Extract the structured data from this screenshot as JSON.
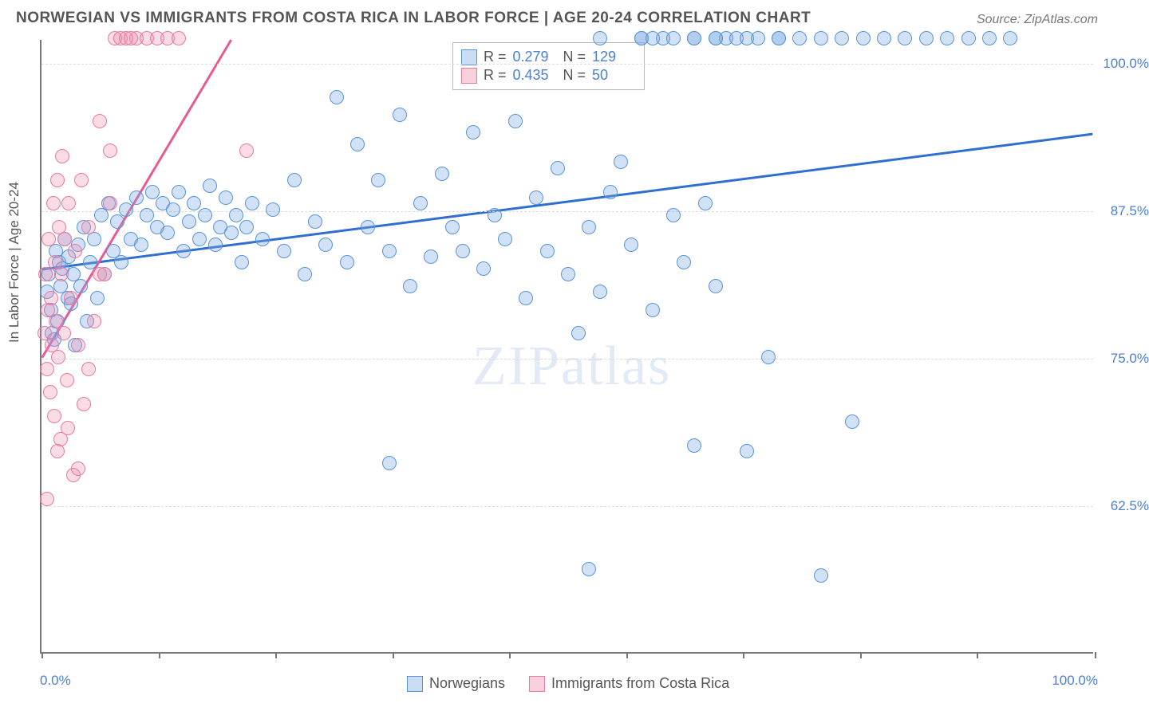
{
  "title": "NORWEGIAN VS IMMIGRANTS FROM COSTA RICA IN LABOR FORCE | AGE 20-24 CORRELATION CHART",
  "source": "Source: ZipAtlas.com",
  "watermark": "ZIPatlas",
  "y_axis_label": "In Labor Force | Age 20-24",
  "chart": {
    "type": "scatter",
    "xlim": [
      0,
      100
    ],
    "ylim": [
      50,
      102
    ],
    "x_label_min": "0.0%",
    "x_label_max": "100.0%",
    "y_ticks": [
      62.5,
      75.0,
      87.5,
      100.0
    ],
    "y_tick_labels": [
      "62.5%",
      "75.0%",
      "87.5%",
      "100.0%"
    ],
    "x_tick_positions": [
      0,
      11.1,
      22.2,
      33.3,
      44.4,
      55.5,
      66.6,
      77.7,
      88.8,
      100
    ],
    "background_color": "#ffffff",
    "grid_color": "#dddddd",
    "marker_radius": 9,
    "colors": {
      "blue_fill": "rgba(122,170,230,0.35)",
      "blue_stroke": "#5a94d8",
      "pink_fill": "rgba(240,140,170,0.3)",
      "pink_stroke": "#e87aa5",
      "blue_line": "#2f6fd0",
      "pink_line": "#e85a95",
      "axis_text": "#4a7fd4",
      "label_text": "#555555"
    },
    "series": [
      {
        "name": "Norwegians",
        "color_key": "blue",
        "R": "0.279",
        "N": "129",
        "trend": {
          "x1": 0,
          "y1": 82.5,
          "x2": 100,
          "y2": 94.0,
          "width": 3
        },
        "points": [
          [
            0.5,
            80.5
          ],
          [
            0.7,
            82
          ],
          [
            0.9,
            79
          ],
          [
            1,
            77
          ],
          [
            1.2,
            76.5
          ],
          [
            1.4,
            84
          ],
          [
            1.5,
            78
          ],
          [
            1.7,
            83
          ],
          [
            1.8,
            81
          ],
          [
            2,
            82.5
          ],
          [
            2.2,
            85
          ],
          [
            2.5,
            80
          ],
          [
            2.6,
            83.5
          ],
          [
            2.8,
            79.5
          ],
          [
            3,
            82
          ],
          [
            3.2,
            76
          ],
          [
            3.5,
            84.5
          ],
          [
            3.7,
            81
          ],
          [
            4,
            86
          ],
          [
            4.3,
            78
          ],
          [
            4.6,
            83
          ],
          [
            5,
            85
          ],
          [
            5.3,
            80
          ],
          [
            5.7,
            87
          ],
          [
            6,
            82
          ],
          [
            6.4,
            88
          ],
          [
            6.8,
            84
          ],
          [
            7.2,
            86.5
          ],
          [
            7.6,
            83
          ],
          [
            8,
            87.5
          ],
          [
            8.5,
            85
          ],
          [
            9,
            88.5
          ],
          [
            9.5,
            84.5
          ],
          [
            10,
            87
          ],
          [
            10.5,
            89
          ],
          [
            11,
            86
          ],
          [
            11.5,
            88
          ],
          [
            12,
            85.5
          ],
          [
            12.5,
            87.5
          ],
          [
            13,
            89
          ],
          [
            13.5,
            84
          ],
          [
            14,
            86.5
          ],
          [
            14.5,
            88
          ],
          [
            15,
            85
          ],
          [
            15.5,
            87
          ],
          [
            16,
            89.5
          ],
          [
            16.5,
            84.5
          ],
          [
            17,
            86
          ],
          [
            17.5,
            88.5
          ],
          [
            18,
            85.5
          ],
          [
            18.5,
            87
          ],
          [
            19,
            83
          ],
          [
            19.5,
            86
          ],
          [
            20,
            88
          ],
          [
            21,
            85
          ],
          [
            22,
            87.5
          ],
          [
            23,
            84
          ],
          [
            24,
            90
          ],
          [
            25,
            82
          ],
          [
            26,
            86.5
          ],
          [
            27,
            84.5
          ],
          [
            28,
            97
          ],
          [
            29,
            83
          ],
          [
            30,
            93
          ],
          [
            31,
            86
          ],
          [
            32,
            90
          ],
          [
            33,
            84
          ],
          [
            34,
            95.5
          ],
          [
            35,
            81
          ],
          [
            36,
            88
          ],
          [
            37,
            83.5
          ],
          [
            38,
            90.5
          ],
          [
            39,
            86
          ],
          [
            40,
            84
          ],
          [
            41,
            94
          ],
          [
            42,
            82.5
          ],
          [
            43,
            87
          ],
          [
            33,
            66
          ],
          [
            44,
            85
          ],
          [
            45,
            95
          ],
          [
            46,
            80
          ],
          [
            47,
            88.5
          ],
          [
            48,
            84
          ],
          [
            49,
            91
          ],
          [
            50,
            82
          ],
          [
            51,
            77
          ],
          [
            52,
            86
          ],
          [
            53,
            80.5
          ],
          [
            53,
            102
          ],
          [
            54,
            89
          ],
          [
            55,
            91.5
          ],
          [
            56,
            84.5
          ],
          [
            57,
            102
          ],
          [
            58,
            79
          ],
          [
            59,
            102
          ],
          [
            60,
            87
          ],
          [
            52,
            57
          ],
          [
            61,
            83
          ],
          [
            62,
            102
          ],
          [
            63,
            88
          ],
          [
            64,
            81
          ],
          [
            65,
            102
          ],
          [
            69,
            75
          ],
          [
            57,
            102
          ],
          [
            58,
            102
          ],
          [
            60,
            102
          ],
          [
            62,
            67.5
          ],
          [
            64,
            102
          ],
          [
            66,
            102
          ],
          [
            67,
            67
          ],
          [
            68,
            102
          ],
          [
            70,
            102
          ],
          [
            72,
            102
          ],
          [
            77,
            69.5
          ],
          [
            74,
            102
          ],
          [
            76,
            102
          ],
          [
            78,
            102
          ],
          [
            74,
            56.5
          ],
          [
            80,
            102
          ],
          [
            82,
            102
          ],
          [
            84,
            102
          ],
          [
            86,
            102
          ],
          [
            88,
            102
          ],
          [
            90,
            102
          ],
          [
            92,
            102
          ],
          [
            62,
            102
          ],
          [
            64,
            102
          ],
          [
            67,
            102
          ],
          [
            70,
            102
          ]
        ]
      },
      {
        "name": "Immigrants from Costa Rica",
        "color_key": "pink",
        "R": "0.435",
        "N": "50",
        "trend": {
          "x1": 0,
          "y1": 75,
          "x2": 18,
          "y2": 102,
          "width": 3
        },
        "points": [
          [
            0.3,
            77
          ],
          [
            0.4,
            82
          ],
          [
            0.5,
            74
          ],
          [
            0.6,
            79
          ],
          [
            0.7,
            85
          ],
          [
            0.8,
            72
          ],
          [
            0.9,
            80
          ],
          [
            1,
            76
          ],
          [
            1.1,
            88
          ],
          [
            1.2,
            70
          ],
          [
            1.3,
            83
          ],
          [
            1.4,
            78
          ],
          [
            1.5,
            90
          ],
          [
            1.6,
            75
          ],
          [
            1.7,
            86
          ],
          [
            1.8,
            68
          ],
          [
            1.9,
            82
          ],
          [
            2,
            92
          ],
          [
            2.1,
            77
          ],
          [
            2.2,
            85
          ],
          [
            2.4,
            73
          ],
          [
            2.6,
            88
          ],
          [
            2.8,
            80
          ],
          [
            3,
            65
          ],
          [
            3.2,
            84
          ],
          [
            3.5,
            76
          ],
          [
            3.8,
            90
          ],
          [
            4,
            71
          ],
          [
            4.5,
            86
          ],
          [
            0.5,
            63
          ],
          [
            5,
            78
          ],
          [
            5.5,
            95
          ],
          [
            6,
            82
          ],
          [
            6.5,
            92.5
          ],
          [
            7,
            102
          ],
          [
            7.5,
            102
          ],
          [
            8,
            102
          ],
          [
            9,
            102
          ],
          [
            10,
            102
          ],
          [
            11,
            102
          ],
          [
            12,
            102
          ],
          [
            13,
            102
          ],
          [
            19.5,
            92.5
          ],
          [
            1.5,
            67
          ],
          [
            2.5,
            69
          ],
          [
            3.5,
            65.5
          ],
          [
            4.5,
            74
          ],
          [
            5.5,
            82
          ],
          [
            6.5,
            88
          ],
          [
            8.5,
            102
          ]
        ]
      }
    ]
  },
  "bottom_legend": {
    "item1": "Norwegians",
    "item2": "Immigrants from Costa Rica"
  }
}
